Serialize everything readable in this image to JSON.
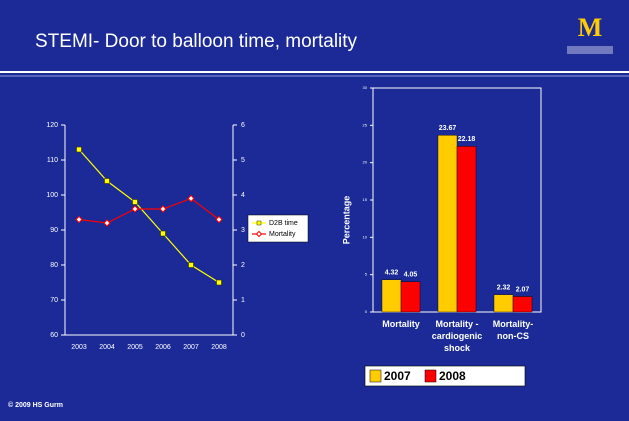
{
  "slide_title": "STEMI- Door to balloon time, mortality",
  "logo": "M",
  "footer": "© 2009 HS Gurm",
  "chart_data": [
    {
      "type": "line",
      "categories": [
        "2003",
        "2004",
        "2005",
        "2006",
        "2007",
        "2008"
      ],
      "series": [
        {
          "name": "D2B time",
          "color": "#ffff00",
          "values": [
            113,
            104,
            98,
            89,
            80,
            75
          ]
        },
        {
          "name": "Mortality",
          "color": "#ff0000",
          "axis": "y2",
          "values": [
            3.3,
            3.2,
            3.6,
            3.6,
            3.9,
            3.3
          ]
        }
      ],
      "ylim": [
        60,
        120
      ],
      "yticks": [
        60,
        70,
        80,
        90,
        100,
        110,
        120
      ],
      "y2lim": [
        0,
        6
      ],
      "y2ticks": [
        0,
        1,
        2,
        3,
        4,
        5,
        6
      ],
      "legend": "right"
    },
    {
      "type": "bar",
      "y_label": "Percentage",
      "categories": [
        "Mortality",
        "Mortality - cardiogenic shock",
        "Mortality- non-CS"
      ],
      "series": [
        {
          "name": "2007",
          "color": "#ffcc00",
          "values": [
            4.32,
            23.67,
            2.32
          ]
        },
        {
          "name": "2008",
          "color": "#ff0000",
          "values": [
            4.05,
            22.18,
            2.07
          ]
        }
      ],
      "ylim": [
        0,
        30
      ],
      "yticks": [
        0,
        5,
        10,
        15,
        20,
        25,
        30
      ],
      "legend": "bottom"
    }
  ]
}
